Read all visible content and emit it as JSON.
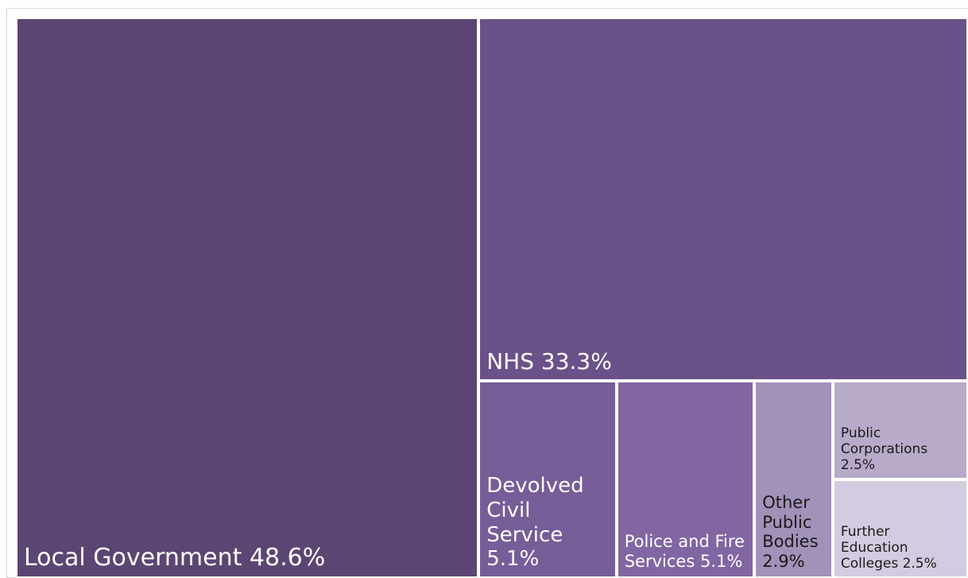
{
  "chart_data": {
    "type": "treemap",
    "items": [
      {
        "name": "Local Government",
        "value": 48.6,
        "label": "Local Government 48.6%",
        "color": "#5b4572",
        "text_color": "#ffffff"
      },
      {
        "name": "NHS",
        "value": 33.3,
        "label": "NHS  33.3%",
        "color": "#6a5189",
        "text_color": "#ffffff"
      },
      {
        "name": "Devolved Civil Service",
        "value": 5.1,
        "label": "Devolved Civil Service 5.1%",
        "color": "#765d98",
        "text_color": "#ffffff"
      },
      {
        "name": "Police and Fire Services",
        "value": 5.1,
        "label": "Police and Fire Services 5.1%",
        "color": "#8166a3",
        "text_color": "#ffffff"
      },
      {
        "name": "Other Public Bodies",
        "value": 2.9,
        "label": "Other Public Bodies 2.9%",
        "color": "#a291b9",
        "text_color": "#1a1a1a"
      },
      {
        "name": "Public Corporations",
        "value": 2.5,
        "label": "Public Corporations 2.5%",
        "color": "#b8aac9",
        "text_color": "#1a1a1a"
      },
      {
        "name": "Further Education Colleges",
        "value": 2.5,
        "label": "Further Education Colleges  2.5%",
        "color": "#d3cbdf",
        "text_color": "#1a1a1a"
      }
    ]
  }
}
